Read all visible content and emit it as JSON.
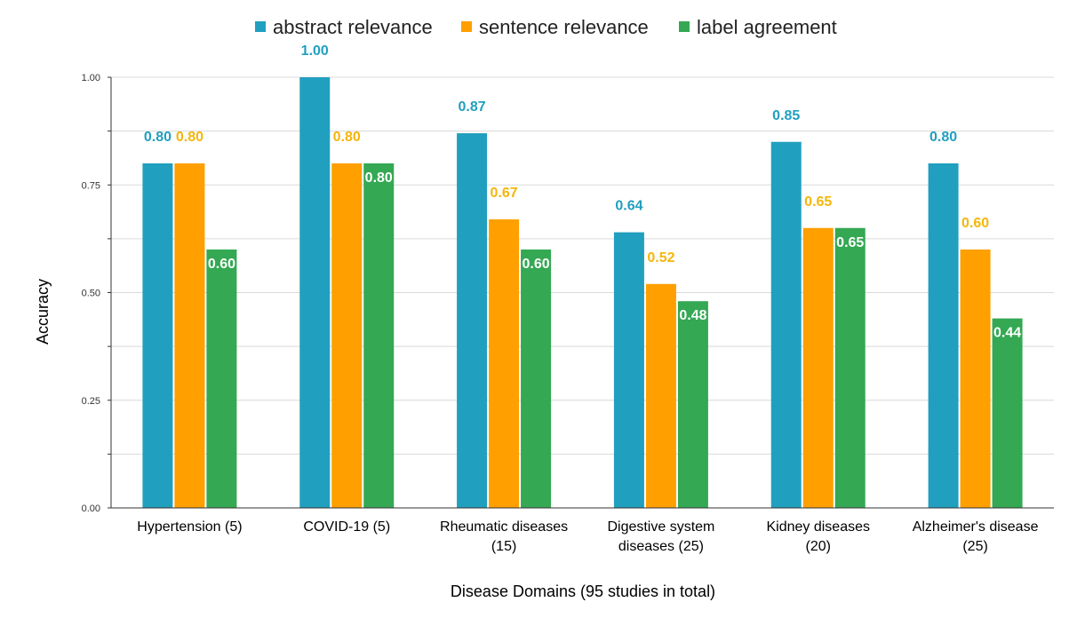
{
  "chart_data": {
    "type": "bar",
    "categories": [
      [
        "Hypertension (5)"
      ],
      [
        "COVID-19 (5)"
      ],
      [
        "Rheumatic diseases",
        "(15)"
      ],
      [
        "Digestive system",
        "diseases (25)"
      ],
      [
        "Kidney diseases",
        "(20)"
      ],
      [
        "Alzheimer's disease",
        "(25)"
      ]
    ],
    "series": [
      {
        "name": "abstract relevance",
        "color": "#219FBF",
        "label_color": "#219FBF",
        "label_position": "above",
        "values": [
          0.8,
          1.0,
          0.87,
          0.64,
          0.85,
          0.8
        ],
        "labels": [
          "0.80",
          "1.00",
          "0.87",
          "0.64",
          "0.85",
          "0.80"
        ]
      },
      {
        "name": "sentence relevance",
        "color": "#FF9F00",
        "label_color": "#F5B60A",
        "label_position": "above",
        "values": [
          0.8,
          0.8,
          0.67,
          0.52,
          0.65,
          0.6
        ],
        "labels": [
          "0.80",
          "0.80",
          "0.67",
          "0.52",
          "0.65",
          "0.60"
        ]
      },
      {
        "name": "label agreement",
        "color": "#34A853",
        "label_color": "#FFFFFF",
        "label_position": "inside",
        "values": [
          0.6,
          0.8,
          0.6,
          0.48,
          0.65,
          0.44
        ],
        "labels": [
          "0.60",
          "0.80",
          "0.60",
          "0.48",
          "0.65",
          "0.44"
        ]
      }
    ],
    "yticks": [
      "0.00",
      "0.25",
      "0.50",
      "0.75",
      "1.00"
    ],
    "ytick_values": [
      0,
      0.25,
      0.5,
      0.75,
      1.0
    ],
    "ylim": [
      0,
      1.0
    ],
    "xlabel": "Disease Domains (95 studies in total)",
    "ylabel": "Accuracy",
    "title": "",
    "legend_position": "top-center",
    "grid": true,
    "axis_color": "#333333",
    "grid_color": "#d9d9d9"
  }
}
